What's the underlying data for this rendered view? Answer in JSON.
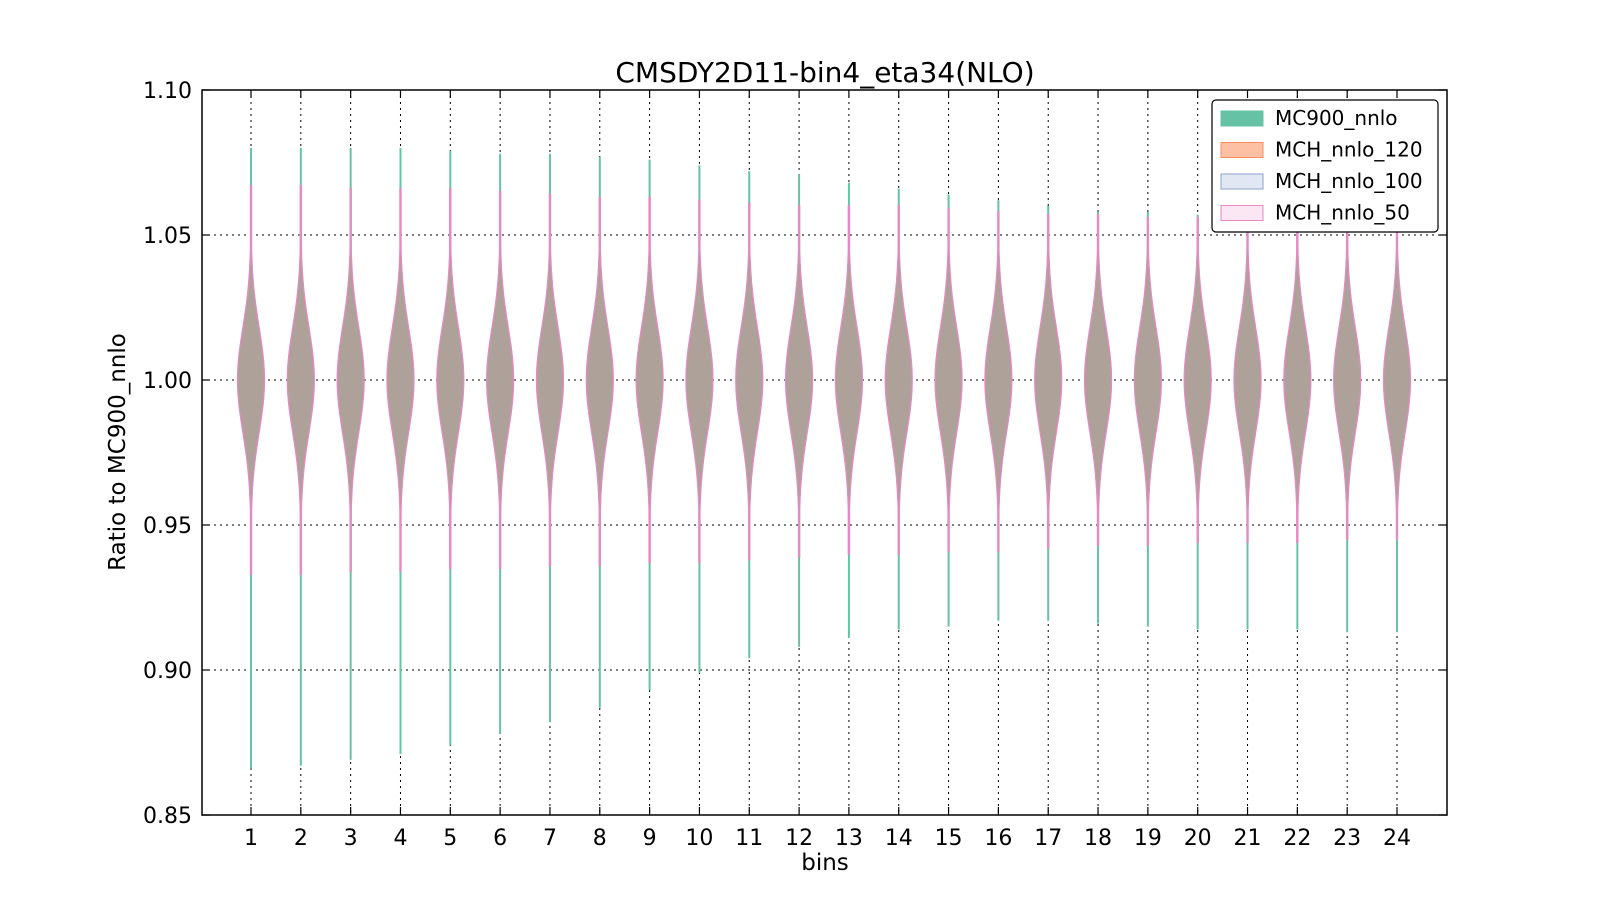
{
  "chart_data": {
    "type": "violin",
    "title": "CMSDY2D11-bin4_eta34(NLO)",
    "xlabel": "bins",
    "ylabel": "Ratio to MC900_nnlo",
    "ylim": [
      0.85,
      1.1
    ],
    "yticks": [
      "0.85",
      "0.90",
      "0.95",
      "1.00",
      "1.05",
      "1.10"
    ],
    "grid": true,
    "legend_position": "top-right",
    "categories": [
      "1",
      "2",
      "3",
      "4",
      "5",
      "6",
      "7",
      "8",
      "9",
      "10",
      "11",
      "12",
      "13",
      "14",
      "15",
      "16",
      "17",
      "18",
      "19",
      "20",
      "21",
      "22",
      "23",
      "24"
    ],
    "series": [
      {
        "name": "MC900_nnlo",
        "color": "#66c2a5",
        "max": [
          1.08,
          1.08,
          1.08,
          1.08,
          1.079,
          1.078,
          1.078,
          1.077,
          1.076,
          1.074,
          1.072,
          1.071,
          1.068,
          1.066,
          1.064,
          1.062,
          1.06,
          1.058,
          1.058,
          1.057,
          1.057,
          1.057,
          1.057,
          1.056
        ],
        "min": [
          0.866,
          0.867,
          0.869,
          0.871,
          0.874,
          0.878,
          0.882,
          0.887,
          0.893,
          0.899,
          0.904,
          0.908,
          0.911,
          0.914,
          0.915,
          0.917,
          0.917,
          0.916,
          0.915,
          0.914,
          0.914,
          0.914,
          0.913,
          0.913
        ],
        "center": [
          1.0,
          1.0,
          1.0,
          1.0,
          1.0,
          1.0,
          1.0,
          1.0,
          1.0,
          1.0,
          1.0,
          1.0,
          1.0,
          1.0,
          1.0,
          1.0,
          1.0,
          1.0,
          1.0,
          1.0,
          1.0,
          1.0,
          1.0,
          1.0
        ]
      },
      {
        "name": "MCH_nnlo_120",
        "color": "#fc8d62",
        "max": [
          1.067,
          1.067,
          1.066,
          1.066,
          1.066,
          1.065,
          1.064,
          1.063,
          1.063,
          1.062,
          1.061,
          1.06,
          1.06,
          1.06,
          1.059,
          1.058,
          1.057,
          1.057,
          1.056,
          1.056,
          1.055,
          1.055,
          1.055,
          1.055
        ],
        "min": [
          0.933,
          0.933,
          0.934,
          0.934,
          0.935,
          0.935,
          0.936,
          0.936,
          0.937,
          0.937,
          0.938,
          0.939,
          0.94,
          0.94,
          0.941,
          0.941,
          0.942,
          0.943,
          0.943,
          0.944,
          0.944,
          0.944,
          0.945,
          0.945
        ],
        "center": [
          1.0,
          1.0,
          1.0,
          1.0,
          1.0,
          1.0,
          1.0,
          1.0,
          1.0,
          1.0,
          1.0,
          1.0,
          1.0,
          1.0,
          1.0,
          1.0,
          1.0,
          1.0,
          1.0,
          1.0,
          1.0,
          1.0,
          1.0,
          1.0
        ]
      },
      {
        "name": "MCH_nnlo_100",
        "color": "#8da0cb",
        "max": [
          1.067,
          1.067,
          1.066,
          1.066,
          1.066,
          1.065,
          1.064,
          1.063,
          1.063,
          1.062,
          1.061,
          1.06,
          1.06,
          1.06,
          1.059,
          1.058,
          1.057,
          1.057,
          1.056,
          1.056,
          1.055,
          1.055,
          1.055,
          1.055
        ],
        "min": [
          0.933,
          0.933,
          0.934,
          0.934,
          0.935,
          0.935,
          0.936,
          0.936,
          0.937,
          0.937,
          0.938,
          0.939,
          0.94,
          0.94,
          0.941,
          0.941,
          0.942,
          0.943,
          0.943,
          0.944,
          0.944,
          0.944,
          0.945,
          0.945
        ],
        "center": [
          1.0,
          1.0,
          1.0,
          1.0,
          1.0,
          1.0,
          1.0,
          1.0,
          1.0,
          1.0,
          1.0,
          1.0,
          1.0,
          1.0,
          1.0,
          1.0,
          1.0,
          1.0,
          1.0,
          1.0,
          1.0,
          1.0,
          1.0,
          1.0
        ]
      },
      {
        "name": "MCH_nnlo_50",
        "color": "#e78ac3",
        "max": [
          1.067,
          1.067,
          1.066,
          1.066,
          1.066,
          1.065,
          1.064,
          1.063,
          1.063,
          1.062,
          1.061,
          1.06,
          1.06,
          1.06,
          1.059,
          1.058,
          1.057,
          1.057,
          1.056,
          1.056,
          1.055,
          1.055,
          1.055,
          1.055
        ],
        "min": [
          0.933,
          0.933,
          0.934,
          0.934,
          0.935,
          0.935,
          0.936,
          0.936,
          0.937,
          0.937,
          0.938,
          0.939,
          0.94,
          0.94,
          0.941,
          0.941,
          0.942,
          0.943,
          0.943,
          0.944,
          0.944,
          0.944,
          0.945,
          0.945
        ],
        "center": [
          1.0,
          1.0,
          1.0,
          1.0,
          1.0,
          1.0,
          1.0,
          1.0,
          1.0,
          1.0,
          1.0,
          1.0,
          1.0,
          1.0,
          1.0,
          1.0,
          1.0,
          1.0,
          1.0,
          1.0,
          1.0,
          1.0,
          1.0,
          1.0
        ]
      }
    ]
  },
  "colors": {
    "overlap_fill": "#ada199",
    "grid": "#000000",
    "axis": "#000000"
  }
}
